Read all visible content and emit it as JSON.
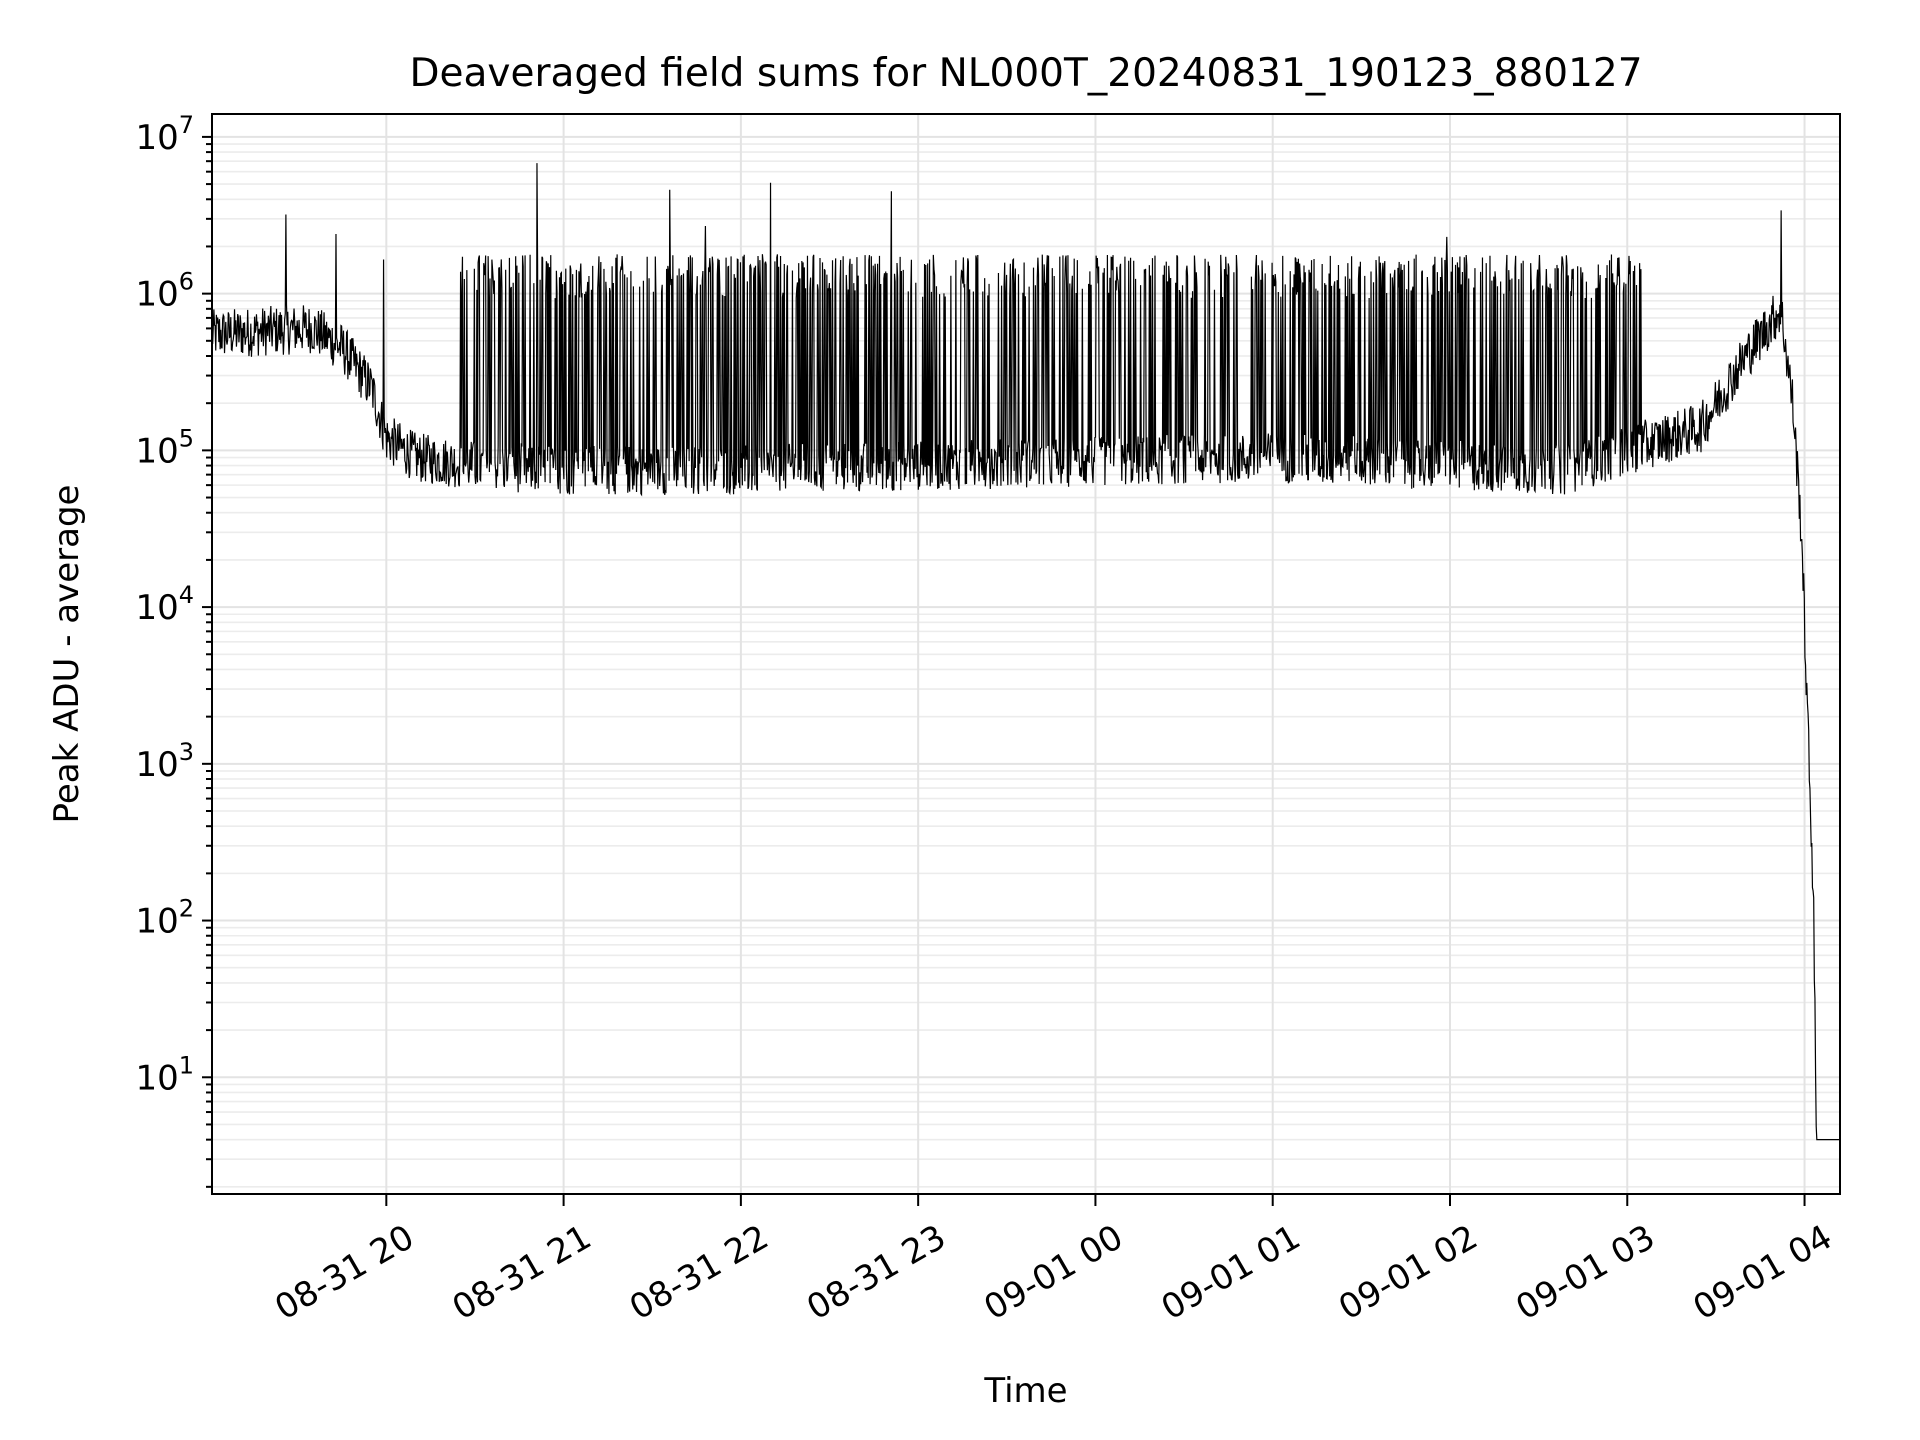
{
  "chart_data": {
    "type": "line",
    "title": "Deaveraged field sums for NL000T_20240831_190123_880127",
    "xlabel": "Time",
    "ylabel": "Peak ADU - average",
    "yscale": "log",
    "ylim": [
      1.8,
      14000000
    ],
    "xlim": [
      "2024-08-31 19:01",
      "2024-09-01 04:12"
    ],
    "grid": true,
    "x_ticks": [
      "08-31 20",
      "08-31 21",
      "08-31 22",
      "08-31 23",
      "09-01 00",
      "09-01 01",
      "09-01 02",
      "09-01 03",
      "09-01 04"
    ],
    "y_ticks": [
      {
        "base": "10",
        "exp": "1",
        "value": 10
      },
      {
        "base": "10",
        "exp": "2",
        "value": 100
      },
      {
        "base": "10",
        "exp": "3",
        "value": 1000
      },
      {
        "base": "10",
        "exp": "4",
        "value": 10000
      },
      {
        "base": "10",
        "exp": "5",
        "value": 100000
      },
      {
        "base": "10",
        "exp": "6",
        "value": 1000000
      },
      {
        "base": "10",
        "exp": "7",
        "value": 10000000
      }
    ],
    "series": [
      {
        "color": "#000000",
        "baseline": [
          [
            "2024-08-31 19:01",
            550000
          ],
          [
            "2024-08-31 19:35",
            600000
          ],
          [
            "2024-08-31 19:45",
            450000
          ],
          [
            "2024-08-31 19:55",
            250000
          ],
          [
            "2024-08-31 20:00",
            120000
          ],
          [
            "2024-08-31 20:10",
            90000
          ],
          [
            "2024-08-31 20:30",
            80000
          ],
          [
            "2024-08-31 21:00",
            75000
          ],
          [
            "2024-08-31 22:00",
            75000
          ],
          [
            "2024-08-31 23:00",
            80000
          ],
          [
            "2024-09-01 00:00",
            85000
          ],
          [
            "2024-09-01 01:00",
            90000
          ],
          [
            "2024-09-01 02:00",
            80000
          ],
          [
            "2024-09-01 02:40",
            75000
          ],
          [
            "2024-09-01 03:00",
            100000
          ],
          [
            "2024-09-01 03:25",
            140000
          ],
          [
            "2024-09-01 03:40",
            400000
          ],
          [
            "2024-09-01 03:52",
            800000
          ],
          [
            "2024-09-01 03:56",
            200000
          ],
          [
            "2024-09-01 03:59",
            30000
          ],
          [
            "2024-09-01 04:01",
            2000
          ],
          [
            "2024-09-01 04:03",
            150
          ],
          [
            "2024-09-01 04:04",
            4
          ],
          [
            "2024-09-01 04:12",
            4
          ]
        ],
        "dense_band": {
          "start": "2024-08-31 20:25",
          "end": "2024-09-01 03:05",
          "high": 1700000
        },
        "spikes": [
          [
            "2024-08-31 19:26",
            3200000
          ],
          [
            "2024-08-31 19:43",
            2400000
          ],
          [
            "2024-08-31 19:59",
            1650000
          ],
          [
            "2024-08-31 20:51",
            6800000
          ],
          [
            "2024-08-31 21:36",
            4600000
          ],
          [
            "2024-08-31 21:48",
            2700000
          ],
          [
            "2024-08-31 22:10",
            5100000
          ],
          [
            "2024-08-31 22:51",
            4500000
          ],
          [
            "2024-09-01 01:59",
            2300000
          ],
          [
            "2024-09-01 03:52",
            3400000
          ]
        ]
      }
    ]
  }
}
